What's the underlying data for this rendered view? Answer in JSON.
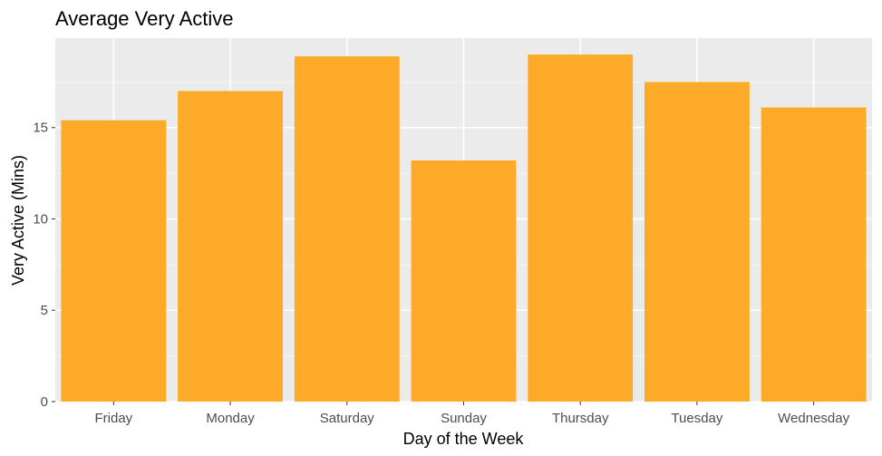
{
  "chart_data": {
    "type": "bar",
    "title": "Average Very Active",
    "xlabel": "Day of the Week",
    "ylabel": "Very Active (Mins)",
    "categories": [
      "Friday",
      "Monday",
      "Saturday",
      "Sunday",
      "Thursday",
      "Tuesday",
      "Wednesday"
    ],
    "values": [
      15.4,
      17.0,
      18.9,
      13.2,
      19.0,
      17.5,
      16.1
    ],
    "ylim": [
      0,
      19.9
    ],
    "yticks": [
      0,
      5,
      10,
      15
    ],
    "grid": true,
    "legend": "none",
    "colors": {
      "bar": "#fcaa27",
      "panel": "#ebebeb",
      "grid_major": "#ffffff",
      "grid_minor": "#f5f5f5",
      "tick": "#4d4d4d"
    }
  }
}
